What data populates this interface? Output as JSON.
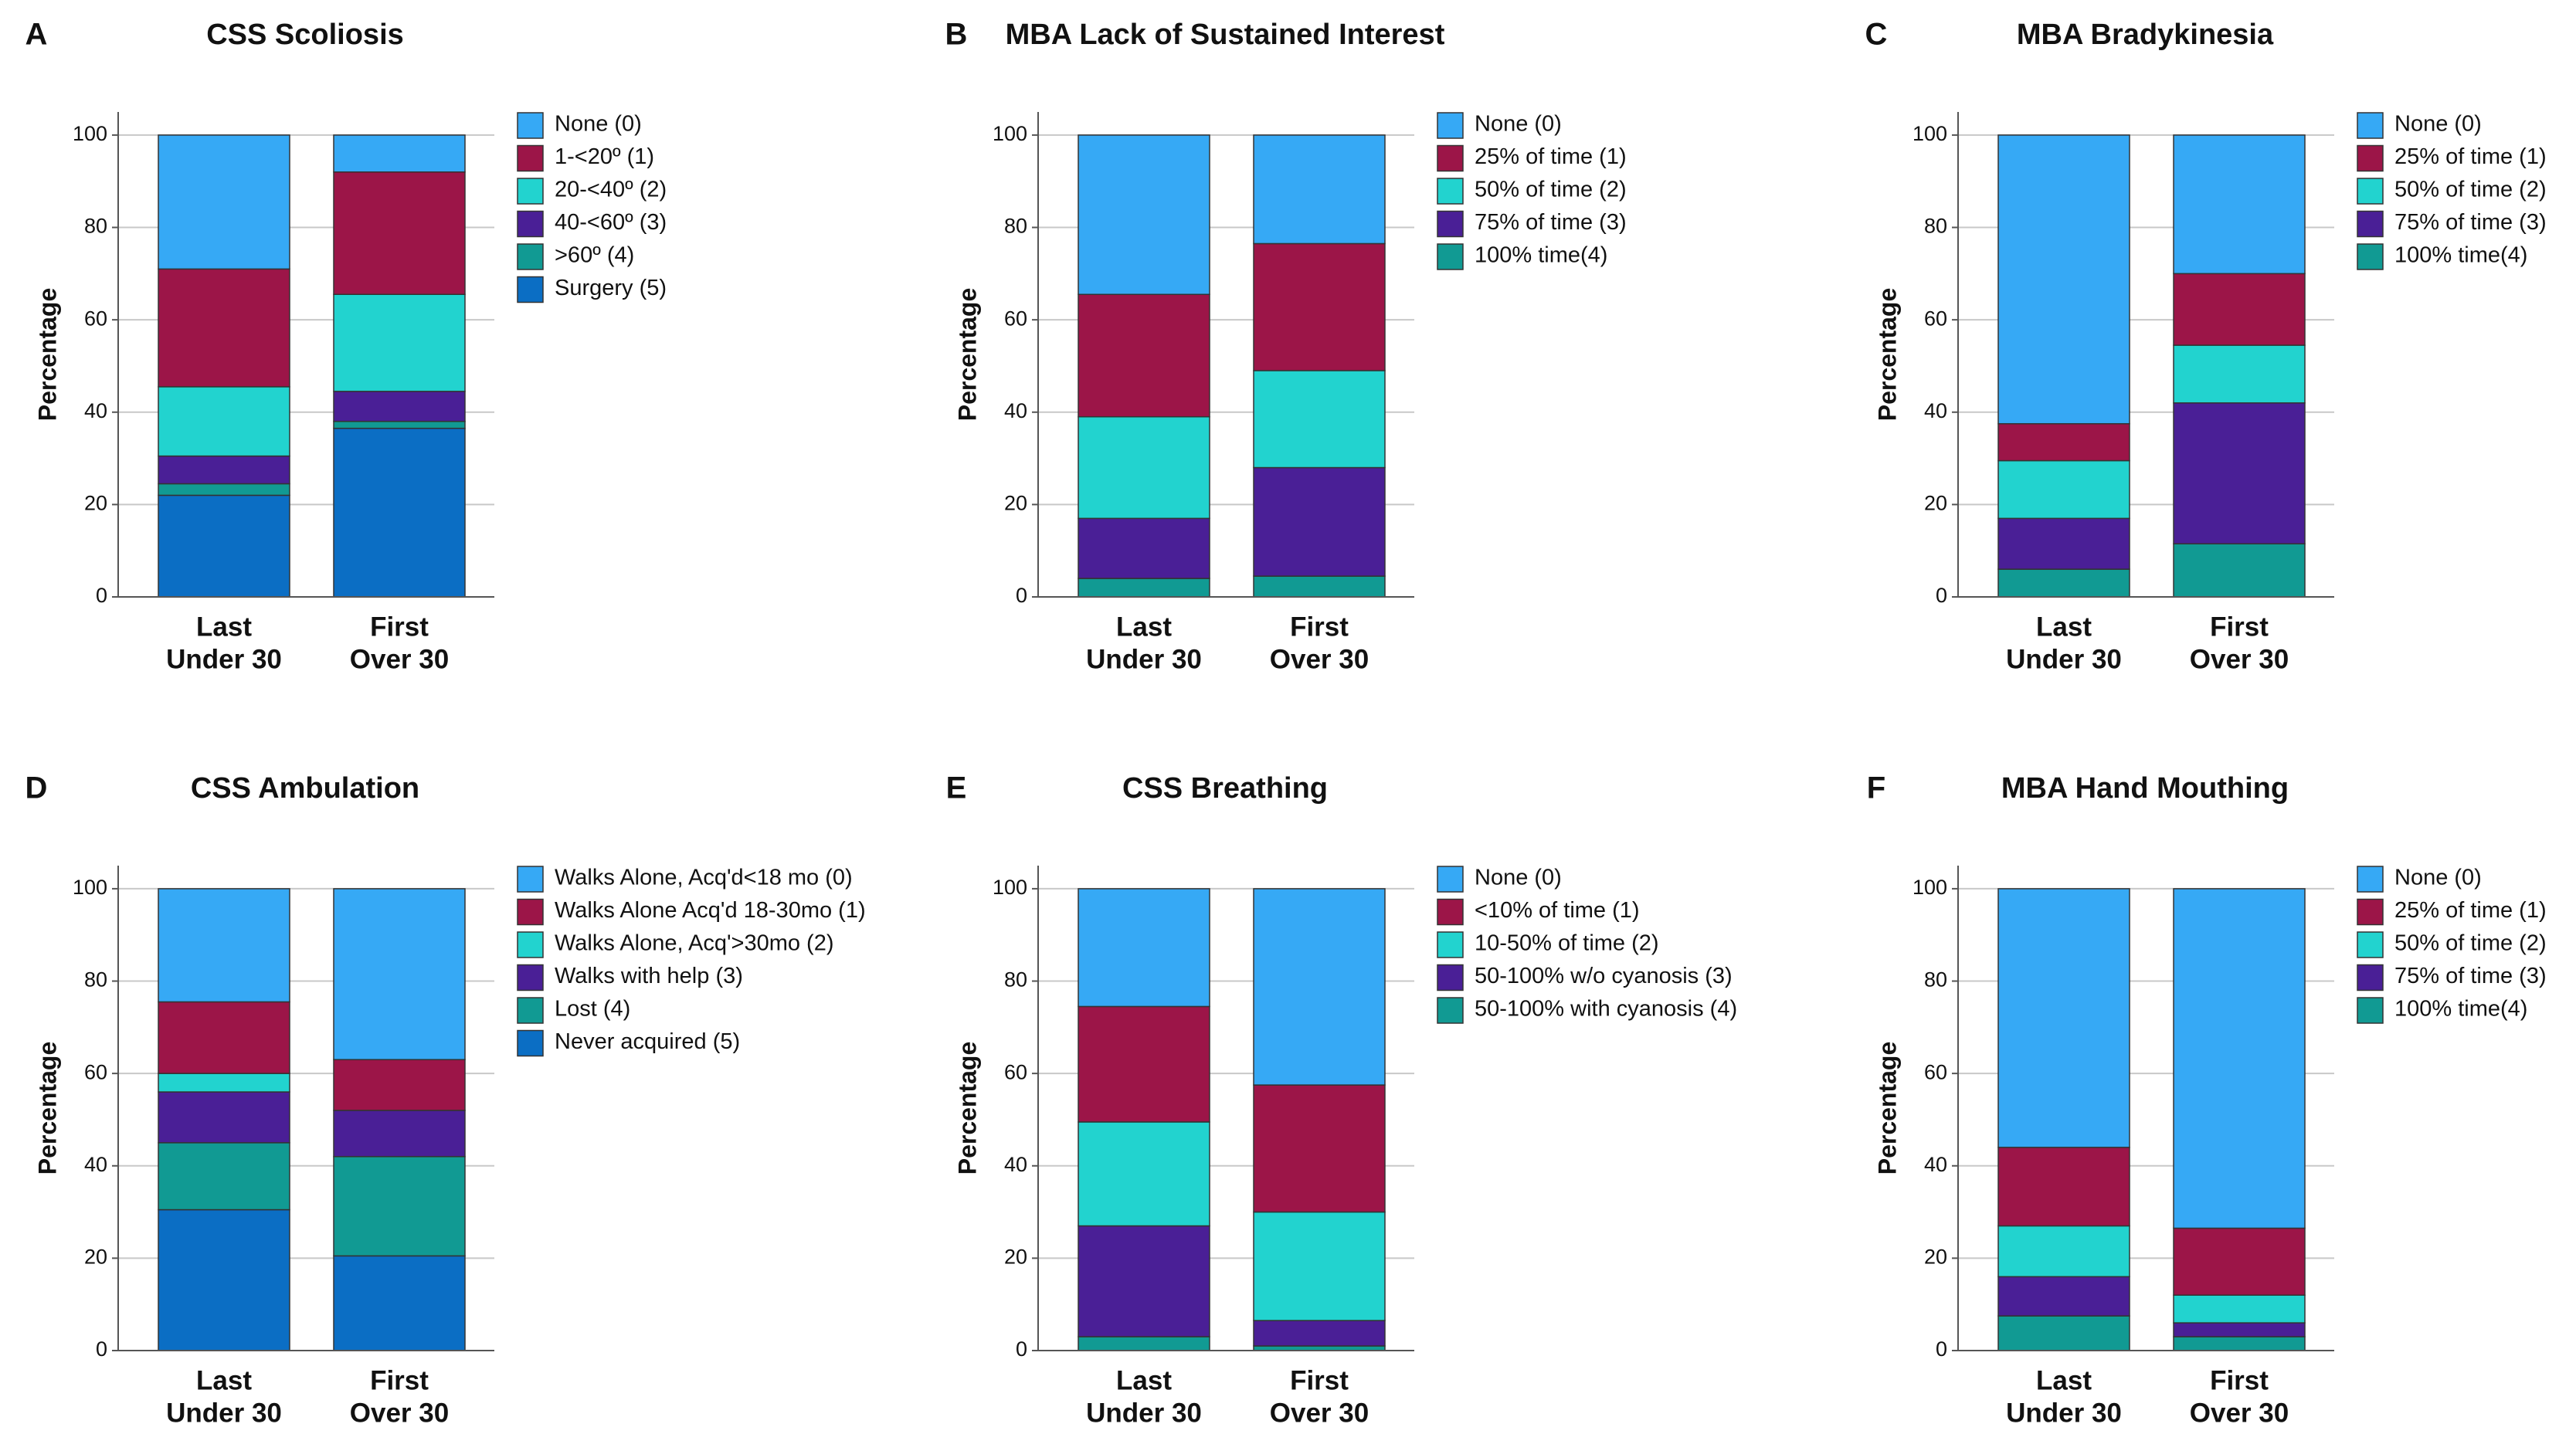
{
  "chart_data": [
    {
      "type": "stacked_bar",
      "panel": "A",
      "title": "CSS Scoliosis",
      "ylabel": "Percentage",
      "categories": [
        [
          "Last",
          "Under 30"
        ],
        [
          "First",
          "Over 30"
        ]
      ],
      "ylim": [
        0,
        105
      ],
      "yticks": [
        0,
        20,
        40,
        60,
        80,
        100
      ],
      "grid": true,
      "series": [
        {
          "name": "None (0)",
          "color": "#36a9f5",
          "values": [
            29,
            8
          ]
        },
        {
          "name": "1-<20º (1)",
          "color": "#9c1548",
          "values": [
            25.5,
            26.5
          ]
        },
        {
          "name": "20-<40º (2)",
          "color": "#22d3cf",
          "values": [
            15,
            21
          ]
        },
        {
          "name": "40-<60º (3)",
          "color": "#4a1f96",
          "values": [
            6,
            6.5
          ]
        },
        {
          "name": ">60º (4)",
          "color": "#119a93",
          "values": [
            2.5,
            1.5
          ]
        },
        {
          "name": "Surgery (5)",
          "color": "#0b6ec4",
          "values": [
            22,
            36.5
          ]
        }
      ]
    },
    {
      "type": "stacked_bar",
      "panel": "B",
      "title": "MBA Lack of Sustained Interest",
      "ylabel": "Percentage",
      "categories": [
        [
          "Last",
          "Under 30"
        ],
        [
          "First",
          "Over 30"
        ]
      ],
      "ylim": [
        0,
        105
      ],
      "yticks": [
        0,
        20,
        40,
        60,
        80,
        100
      ],
      "grid": true,
      "series": [
        {
          "name": "None (0)",
          "color": "#36a9f5",
          "values": [
            34.5,
            23.5
          ]
        },
        {
          "name": "25% of time (1)",
          "color": "#9c1548",
          "values": [
            26.5,
            27.5
          ]
        },
        {
          "name": "50% of time (2)",
          "color": "#22d3cf",
          "values": [
            22,
            21
          ]
        },
        {
          "name": "75% of time (3)",
          "color": "#4a1f96",
          "values": [
            13,
            23.5
          ]
        },
        {
          "name": "100% time(4)",
          "color": "#119a93",
          "values": [
            4,
            4.5
          ]
        }
      ]
    },
    {
      "type": "stacked_bar",
      "panel": "C",
      "title": "MBA Bradykinesia",
      "ylabel": "Percentage",
      "categories": [
        [
          "Last",
          "Under 30"
        ],
        [
          "First",
          "Over 30"
        ]
      ],
      "ylim": [
        0,
        105
      ],
      "yticks": [
        0,
        20,
        40,
        60,
        80,
        100
      ],
      "grid": true,
      "series": [
        {
          "name": "None (0)",
          "color": "#36a9f5",
          "values": [
            62.5,
            30
          ]
        },
        {
          "name": "25% of time (1)",
          "color": "#9c1548",
          "values": [
            8,
            15.5
          ]
        },
        {
          "name": "50% of time (2)",
          "color": "#22d3cf",
          "values": [
            12.5,
            12.5
          ]
        },
        {
          "name": "75% of time (3)",
          "color": "#4a1f96",
          "values": [
            11,
            30.5
          ]
        },
        {
          "name": "100% time(4)",
          "color": "#119a93",
          "values": [
            6,
            11.5
          ]
        }
      ]
    },
    {
      "type": "stacked_bar",
      "panel": "D",
      "title": "CSS Ambulation",
      "ylabel": "Percentage",
      "categories": [
        [
          "Last",
          "Under 30"
        ],
        [
          "First",
          "Over 30"
        ]
      ],
      "ylim": [
        0,
        105
      ],
      "yticks": [
        0,
        20,
        40,
        60,
        80,
        100
      ],
      "grid": true,
      "series": [
        {
          "name": "Walks Alone, Acq'd<18 mo (0)",
          "color": "#36a9f5",
          "values": [
            24.5,
            37
          ]
        },
        {
          "name": "Walks Alone Acq'd 18-30mo (1)",
          "color": "#9c1548",
          "values": [
            15.5,
            11
          ]
        },
        {
          "name": "Walks Alone, Acq'>30mo (2)",
          "color": "#22d3cf",
          "values": [
            4,
            0
          ]
        },
        {
          "name": "Walks with help (3)",
          "color": "#4a1f96",
          "values": [
            11,
            10
          ]
        },
        {
          "name": "Lost (4)",
          "color": "#119a93",
          "values": [
            14.5,
            21.5
          ]
        },
        {
          "name": "Never acquired (5)",
          "color": "#0b6ec4",
          "values": [
            30.5,
            20.5
          ]
        }
      ]
    },
    {
      "type": "stacked_bar",
      "panel": "E",
      "title": "CSS Breathing",
      "ylabel": "Percentage",
      "categories": [
        [
          "Last",
          "Under 30"
        ],
        [
          "First",
          "Over 30"
        ]
      ],
      "ylim": [
        0,
        105
      ],
      "yticks": [
        0,
        20,
        40,
        60,
        80,
        100
      ],
      "grid": true,
      "series": [
        {
          "name": "None (0)",
          "color": "#36a9f5",
          "values": [
            25.5,
            42.5
          ]
        },
        {
          "name": "<10% of time (1)",
          "color": "#9c1548",
          "values": [
            25,
            27.5
          ]
        },
        {
          "name": "10-50% of time (2)",
          "color": "#22d3cf",
          "values": [
            22.5,
            23.5
          ]
        },
        {
          "name": "50-100% w/o cyanosis (3)",
          "color": "#4a1f96",
          "values": [
            24,
            5.5
          ]
        },
        {
          "name": "50-100% with cyanosis (4)",
          "color": "#119a93",
          "values": [
            3,
            1
          ]
        }
      ]
    },
    {
      "type": "stacked_bar",
      "panel": "F",
      "title": "MBA Hand Mouthing",
      "ylabel": "Percentage",
      "categories": [
        [
          "Last",
          "Under 30"
        ],
        [
          "First",
          "Over 30"
        ]
      ],
      "ylim": [
        0,
        105
      ],
      "yticks": [
        0,
        20,
        40,
        60,
        80,
        100
      ],
      "grid": true,
      "series": [
        {
          "name": "None (0)",
          "color": "#36a9f5",
          "values": [
            56,
            73.5
          ]
        },
        {
          "name": "25% of time (1)",
          "color": "#9c1548",
          "values": [
            17,
            14.5
          ]
        },
        {
          "name": "50% of time (2)",
          "color": "#22d3cf",
          "values": [
            11,
            6
          ]
        },
        {
          "name": "75% of time (3)",
          "color": "#4a1f96",
          "values": [
            8.5,
            3
          ]
        },
        {
          "name": "100% time(4)",
          "color": "#119a93",
          "values": [
            7.5,
            3
          ]
        }
      ]
    }
  ]
}
